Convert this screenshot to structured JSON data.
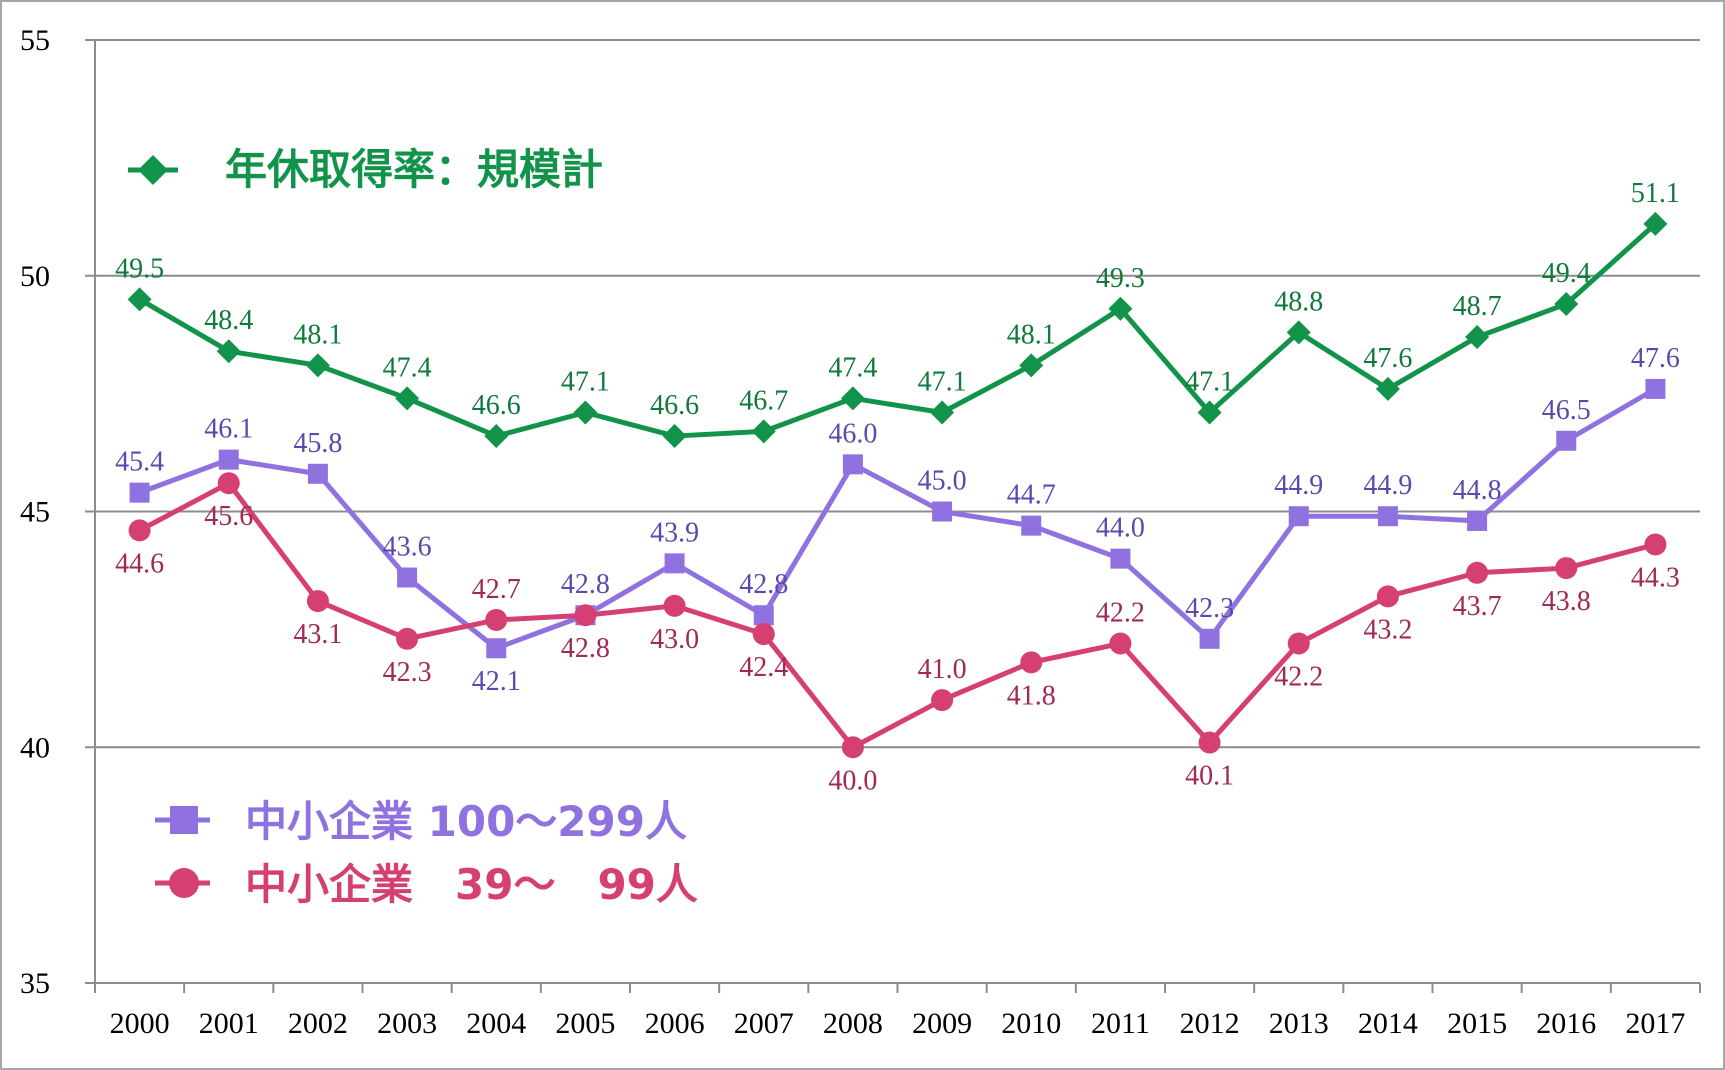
{
  "chart_data": {
    "type": "line",
    "title": "",
    "xlabel": "",
    "ylabel": "",
    "ylim": [
      35,
      55
    ],
    "yticks": [
      35,
      40,
      45,
      50,
      55
    ],
    "grid": "horizontal",
    "categories": [
      "2000",
      "2001",
      "2002",
      "2003",
      "2004",
      "2005",
      "2006",
      "2007",
      "2008",
      "2009",
      "2010",
      "2011",
      "2012",
      "2013",
      "2014",
      "2015",
      "2016",
      "2017"
    ],
    "series": [
      {
        "name": "年休取得率：規模計",
        "color": "#12934a",
        "label_color": "#0f7a3c",
        "marker": "diamond",
        "values": [
          49.5,
          48.4,
          48.1,
          47.4,
          46.6,
          47.1,
          46.6,
          46.7,
          47.4,
          47.1,
          48.1,
          49.3,
          47.1,
          48.8,
          47.6,
          48.7,
          49.4,
          51.1
        ],
        "labels": [
          "49.5",
          "48.4",
          "48.1",
          "47.4",
          "46.6",
          "47.1",
          "46.6",
          "46.7",
          "47.4",
          "47.1",
          "48.1",
          "49.3",
          "47.1",
          "48.8",
          "47.6",
          "48.7",
          "49.4",
          "51.1"
        ],
        "label_pos": [
          "above",
          "above",
          "above",
          "above",
          "above",
          "above",
          "above",
          "above",
          "above",
          "above",
          "above",
          "above",
          "above",
          "above",
          "above",
          "above",
          "above",
          "above"
        ]
      },
      {
        "name": "中小企業 100～299人",
        "color": "#8f72e0",
        "label_color": "#5b4aae",
        "marker": "square",
        "values": [
          45.4,
          46.1,
          45.8,
          43.6,
          42.1,
          42.8,
          43.9,
          42.8,
          46.0,
          45.0,
          44.7,
          44.0,
          42.3,
          44.9,
          44.9,
          44.8,
          46.5,
          47.6
        ],
        "labels": [
          "45.4",
          "46.1",
          "45.8",
          "43.6",
          "42.1",
          "42.8",
          "43.9",
          "42.8",
          "46.0",
          "45.0",
          "44.7",
          "44.0",
          "42.3",
          "44.9",
          "44.9",
          "44.8",
          "46.5",
          "47.6"
        ],
        "label_pos": [
          "above",
          "above",
          "above",
          "above",
          "below",
          "above",
          "above",
          "above",
          "above",
          "above",
          "above",
          "above",
          "above",
          "above",
          "above",
          "above",
          "above",
          "above"
        ]
      },
      {
        "name": "中小企業　39～　99人",
        "color": "#d63f72",
        "label_color": "#a02a55",
        "marker": "circle",
        "values": [
          44.6,
          45.6,
          43.1,
          42.3,
          42.7,
          42.8,
          43.0,
          42.4,
          40.0,
          41.0,
          41.8,
          42.2,
          40.1,
          42.2,
          43.2,
          43.7,
          43.8,
          44.3
        ],
        "labels": [
          "44.6",
          "45.6",
          "43.1",
          "42.3",
          "42.7",
          "42.8",
          "43.0",
          "42.4",
          "40.0",
          "41.0",
          "41.8",
          "42.2",
          "40.1",
          "42.2",
          "43.2",
          "43.7",
          "43.8",
          "44.3"
        ],
        "label_pos": [
          "below",
          "below",
          "below",
          "below",
          "above",
          "below",
          "below",
          "below",
          "below",
          "above",
          "below",
          "above",
          "below",
          "below",
          "below",
          "below",
          "below",
          "below"
        ]
      }
    ],
    "legend": "inside-left"
  }
}
